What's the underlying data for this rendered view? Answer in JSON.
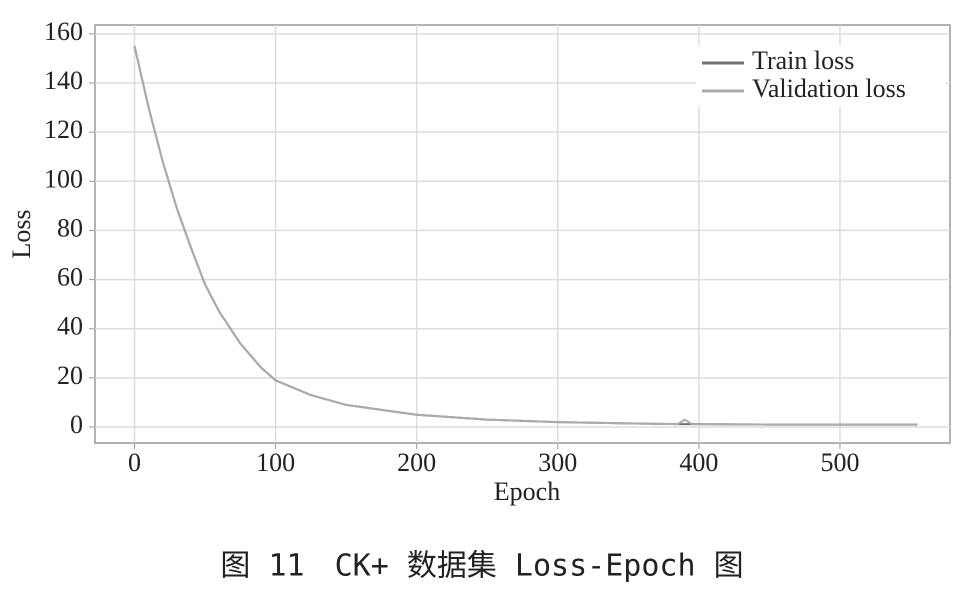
{
  "chart_data": {
    "type": "line",
    "caption": "图 11　CK+ 数据集 Loss-Epoch 图",
    "xlabel": "Epoch",
    "ylabel": "Loss",
    "x": [
      0,
      10,
      20,
      30,
      40,
      50,
      60,
      75,
      90,
      100,
      125,
      150,
      175,
      200,
      250,
      300,
      350,
      385,
      390,
      395,
      450,
      500,
      555
    ],
    "series": [
      {
        "name": "Train loss",
        "color": "#707070",
        "values": [
          155,
          130,
          108,
          89,
          73,
          58,
          47,
          34,
          24,
          19,
          13,
          9,
          7,
          5,
          3,
          2,
          1.5,
          1.2,
          1.2,
          1.2,
          1,
          1,
          1
        ]
      },
      {
        "name": "Validation loss",
        "color": "#ababab",
        "values": [
          155,
          130,
          108,
          89,
          73,
          58,
          47,
          34,
          24,
          19,
          13,
          9,
          7,
          5,
          3,
          2,
          1.5,
          1.2,
          3,
          1.2,
          1,
          1,
          1
        ]
      }
    ],
    "xlim": [
      -28,
      578
    ],
    "ylim": [
      -6.5,
      163.6
    ],
    "xticks": [
      0,
      100,
      200,
      300,
      400,
      500
    ],
    "yticks": [
      0,
      20,
      40,
      60,
      80,
      100,
      120,
      140,
      160
    ],
    "grid": true,
    "legend": "upper right"
  }
}
